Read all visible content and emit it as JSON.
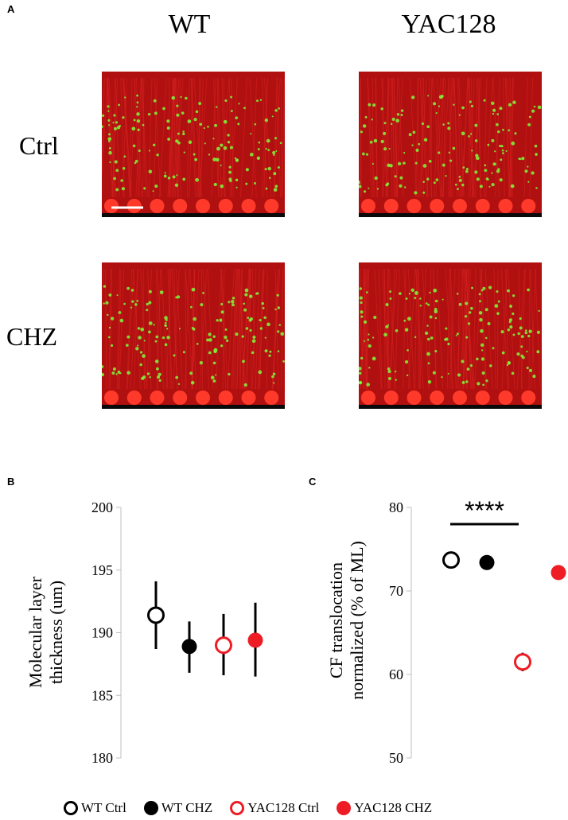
{
  "panels": {
    "a": {
      "letter": "A",
      "columns": [
        "WT",
        "YAC128"
      ],
      "rows": [
        "Ctrl",
        "CHZ"
      ]
    },
    "b": {
      "letter": "B"
    },
    "c": {
      "letter": "C"
    }
  },
  "colors": {
    "wt_ctrl_edge": "#000000",
    "wt_chz_fill": "#000000",
    "yac_ctrl_edge": "#ee1c25",
    "yac_chz_fill": "#ee1c25",
    "axis": "#bfbfbf",
    "tissue": "#b01010",
    "label_green": "#7cfc3a"
  },
  "legend": [
    {
      "label": "WT Ctrl",
      "style": "open",
      "color": "#000000"
    },
    {
      "label": "WT CHZ",
      "style": "filled",
      "color": "#000000"
    },
    {
      "label": "YAC128 Ctrl",
      "style": "open",
      "color": "#ee1c25"
    },
    {
      "label": "YAC128 CHZ",
      "style": "filled",
      "color": "#ee1c25"
    }
  ],
  "chart_data": [
    {
      "type": "scatter",
      "title": "",
      "ylabel": "Molecular layer thickness (um)",
      "ylabel_lines": [
        "Molecular layer",
        "thickness (um)"
      ],
      "xlabel": "",
      "ylim": [
        180,
        200
      ],
      "yticks": [
        180,
        185,
        190,
        195,
        200
      ],
      "series": [
        {
          "name": "WT Ctrl",
          "value": 191.4,
          "error": [
            188.7,
            194.1
          ]
        },
        {
          "name": "WT CHZ",
          "value": 188.9,
          "error": [
            186.8,
            190.9
          ]
        },
        {
          "name": "YAC128 Ctrl",
          "value": 189.0,
          "error": [
            186.6,
            191.5
          ]
        },
        {
          "name": "YAC128 CHZ",
          "value": 189.4,
          "error": [
            186.5,
            192.4
          ]
        }
      ]
    },
    {
      "type": "scatter",
      "title": "",
      "ylabel": "CF translocation normalized (% of ML)",
      "ylabel_lines": [
        "CF translocation",
        "normalized (% of ML)"
      ],
      "xlabel": "",
      "ylim": [
        50,
        80
      ],
      "yticks": [
        50,
        60,
        70,
        80
      ],
      "series": [
        {
          "name": "WT Ctrl",
          "value": 73.7,
          "error": [
            73.2,
            74.2
          ]
        },
        {
          "name": "WT CHZ",
          "value": 73.4,
          "error": [
            72.9,
            73.9
          ]
        },
        {
          "name": "YAC128 Ctrl",
          "value": 61.5,
          "error": [
            60.4,
            62.6
          ]
        },
        {
          "name": "YAC128 CHZ",
          "value": 72.2,
          "error": [
            71.7,
            72.7
          ]
        }
      ],
      "annotation": "****"
    }
  ]
}
